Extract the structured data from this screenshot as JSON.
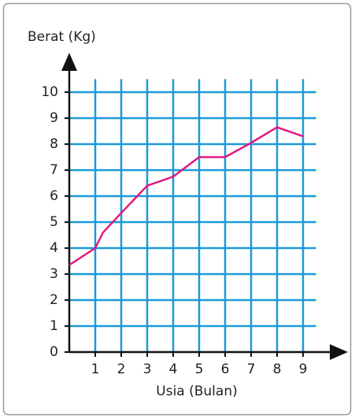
{
  "chart_data": {
    "type": "line",
    "ylabel": "Berat (Kg)",
    "xlabel": "Usia (Bulan)",
    "x": [
      0,
      1,
      1.3,
      2,
      3,
      4,
      5,
      6,
      7,
      8,
      9
    ],
    "values": [
      3.35,
      4.0,
      4.6,
      5.35,
      6.4,
      6.75,
      7.5,
      7.5,
      8.05,
      8.65,
      8.3
    ],
    "color": "#e2197f",
    "xlim": [
      0,
      9.5
    ],
    "ylim": [
      0,
      10.5
    ],
    "xticks": [
      1,
      2,
      3,
      4,
      5,
      6,
      7,
      8,
      9
    ],
    "yticks": [
      0,
      1,
      2,
      3,
      4,
      5,
      6,
      7,
      8,
      9,
      10
    ],
    "grid": true,
    "grid_color": "#1a9ad7"
  }
}
